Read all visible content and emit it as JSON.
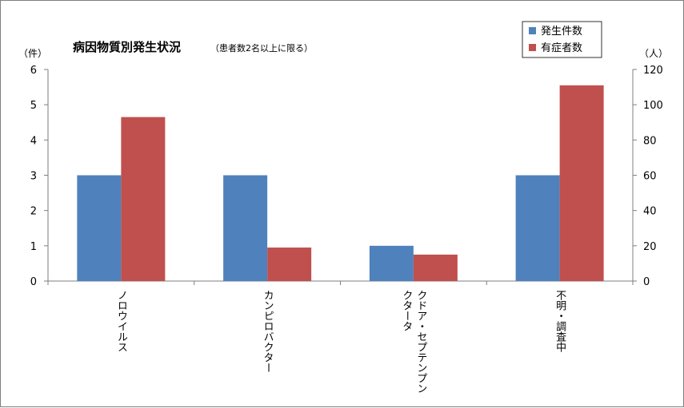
{
  "chart_data": {
    "type": "bar",
    "title": "病因物質別発生状況",
    "subtitle": "（患者数2名以上に限る）",
    "left_axis_unit": "（件）",
    "right_axis_unit": "（人）",
    "categories": [
      "ノロウイルス",
      "カンピロバクター",
      "クドア・セプテンプンクタータ",
      "不明・調査中"
    ],
    "category_lines": [
      [
        "ノロウイルス"
      ],
      [
        "カンピロバクター"
      ],
      [
        "クドア・セプテンプン",
        "クタータ"
      ],
      [
        "不明・調査中"
      ]
    ],
    "series": [
      {
        "name": "発生件数",
        "axis": "left",
        "color": "#4f81bd",
        "values": [
          3,
          3,
          1,
          3
        ]
      },
      {
        "name": "有症者数",
        "axis": "right",
        "color": "#c0504d",
        "values": [
          93,
          19,
          15,
          111
        ]
      }
    ],
    "left_ylim": [
      0,
      6
    ],
    "left_ticks": [
      "0",
      "1",
      "2",
      "3",
      "4",
      "5",
      "6"
    ],
    "right_ylim": [
      0,
      120
    ],
    "right_ticks": [
      "0",
      "20",
      "40",
      "60",
      "80",
      "100",
      "120"
    ],
    "grid": false,
    "legend_position": "top-right"
  }
}
